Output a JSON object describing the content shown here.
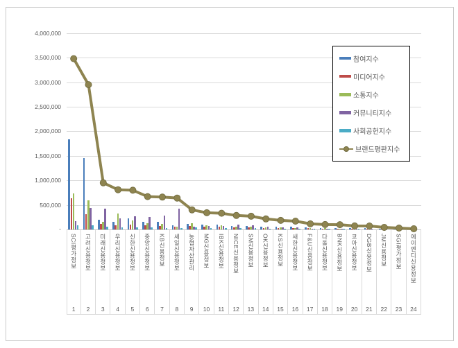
{
  "chart_data": {
    "type": "bar",
    "title": "",
    "categories": [
      "SCI평가정보",
      "고려신용정보",
      "미래신용정보",
      "우리신용정보",
      "신한신용정보",
      "중앙신용정보",
      "KB신용정보",
      "세일신용정보",
      "농협자산관리",
      "MG신용정보",
      "IBK신용정보",
      "NICE신용정보",
      "SM신용정보",
      "OK신용정보",
      "KS신용정보",
      "새한신용정보",
      "F&U신용정보",
      "다올신용정보",
      "BNK신용정보",
      "코아신용정보",
      "DGB신용정보",
      "JM신용정보",
      "SGI평가정보",
      "에이엔디신용정보"
    ],
    "ranks": [
      "1",
      "2",
      "3",
      "4",
      "5",
      "6",
      "7",
      "8",
      "9",
      "10",
      "11",
      "12",
      "13",
      "14",
      "15",
      "16",
      "17",
      "18",
      "19",
      "20",
      "21",
      "22",
      "23",
      "24"
    ],
    "series": [
      {
        "name": "참여지수",
        "type": "bar",
        "color": "#4A7EBB",
        "values": [
          1830000,
          1460000,
          200000,
          160000,
          230000,
          155000,
          150000,
          80000,
          120000,
          100000,
          95000,
          70000,
          65000,
          60000,
          55000,
          50000,
          40000,
          35000,
          33000,
          25000,
          23000,
          15000,
          10000,
          5000
        ]
      },
      {
        "name": "미디어지수",
        "type": "bar",
        "color": "#BE4B48",
        "values": [
          640000,
          310000,
          115000,
          85000,
          100000,
          90000,
          75000,
          60000,
          70000,
          60000,
          55000,
          40000,
          40000,
          35000,
          30000,
          28000,
          25000,
          20000,
          20000,
          15000,
          14000,
          9000,
          6000,
          3000
        ]
      },
      {
        "name": "소통지수",
        "type": "bar",
        "color": "#9BBB59",
        "values": [
          740000,
          600000,
          160000,
          330000,
          180000,
          125000,
          110000,
          50000,
          130000,
          90000,
          80000,
          50000,
          50000,
          40000,
          40000,
          35000,
          25000,
          22000,
          20000,
          15000,
          14000,
          9000,
          6000,
          3000
        ]
      },
      {
        "name": "커뮤니티지수",
        "type": "bar",
        "color": "#8064A2",
        "values": [
          170000,
          440000,
          430000,
          230000,
          270000,
          260000,
          280000,
          420000,
          60000,
          70000,
          70000,
          100000,
          90000,
          60000,
          45000,
          42000,
          20000,
          18000,
          17000,
          12000,
          12000,
          8000,
          5000,
          3000
        ]
      },
      {
        "name": "사회공헌지수",
        "type": "bar",
        "color": "#4BACC6",
        "values": [
          90000,
          90000,
          55000,
          40000,
          40000,
          40000,
          35000,
          30000,
          40000,
          30000,
          30000,
          25000,
          25000,
          20000,
          15000,
          15000,
          10000,
          10000,
          10000,
          8000,
          7000,
          4000,
          3000,
          1000
        ]
      },
      {
        "name": "브랜드평판지수",
        "type": "line",
        "color": "#8E8450",
        "values": [
          3480000,
          2950000,
          950000,
          810000,
          800000,
          670000,
          660000,
          640000,
          400000,
          340000,
          330000,
          285000,
          270000,
          215000,
          185000,
          170000,
          115000,
          100000,
          98000,
          72000,
          70000,
          43000,
          28000,
          14000
        ]
      }
    ],
    "y_axis": {
      "min": 0,
      "max": 4000000,
      "tick_interval": 500000,
      "tick_labels": [
        "4,000,000",
        "3,500,000",
        "3,000,000",
        "2,500,000",
        "2,000,000",
        "1,500,000",
        "1,000,000",
        "500,000"
      ],
      "zero_label": "-"
    },
    "legend_position": "top-right",
    "grid": true
  },
  "colors": {
    "grid": "#d9d9d9",
    "axis_text": "#595959",
    "frame_border": "#c9c9c9",
    "legend_border": "#000000",
    "line_marker_fill": "#8E8450",
    "line_marker_edge": "#6f6a3e"
  }
}
